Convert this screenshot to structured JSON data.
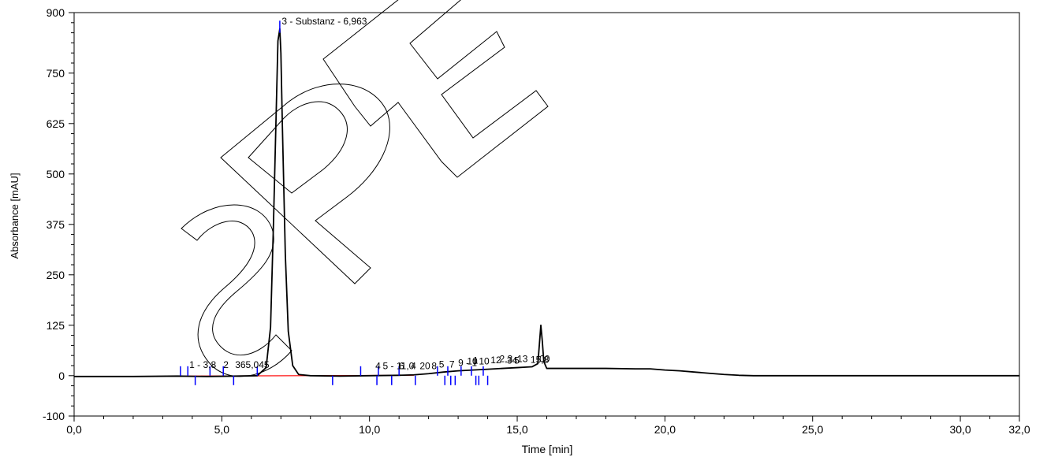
{
  "chart_data": {
    "type": "line",
    "xlabel": "Time [min]",
    "ylabel": "Absorbance [mAU]",
    "xlim": [
      0,
      32
    ],
    "ylim": [
      -100,
      900
    ],
    "x_ticks": [
      0,
      5,
      10,
      15,
      20,
      25,
      30,
      32
    ],
    "x_tick_labels": [
      "0,0",
      "5,0",
      "10,0",
      "15,0",
      "20,0",
      "25,0",
      "30,0",
      "32,0"
    ],
    "y_ticks": [
      -100,
      0,
      125,
      250,
      375,
      500,
      625,
      750,
      900
    ],
    "y_tick_labels": [
      "-100",
      "0",
      "125",
      "250",
      "375",
      "500",
      "625",
      "750",
      "900"
    ],
    "grid": false,
    "watermark": "SPE",
    "series": [
      {
        "color": "#000000",
        "x": [
          0,
          2,
          3.5,
          4.5,
          5.5,
          6.2,
          6.5,
          6.65,
          6.75,
          6.85,
          6.9,
          6.963,
          7.0,
          7.05,
          7.15,
          7.25,
          7.4,
          7.6,
          8,
          9,
          10,
          11,
          11.5,
          12,
          12.5,
          13,
          13.5,
          14,
          14.5,
          15,
          15.5,
          15.7,
          15.8,
          15.85,
          15.9,
          16,
          17,
          18,
          19,
          19.5,
          20,
          20.5,
          21,
          21.5,
          22,
          22.5,
          23,
          24,
          26,
          28,
          30,
          32
        ],
        "y": [
          -2,
          -2,
          -1,
          -2,
          -1,
          0,
          20,
          120,
          380,
          680,
          830,
          860,
          800,
          620,
          300,
          110,
          25,
          3,
          0,
          -1,
          0,
          1,
          2,
          5,
          9,
          12,
          14,
          16,
          18,
          20,
          22,
          30,
          125,
          85,
          35,
          18,
          18,
          18,
          17,
          17,
          14,
          12,
          9,
          6,
          3,
          1,
          0,
          0,
          0,
          0,
          0,
          0
        ]
      }
    ],
    "baseline": {
      "color": "#ff0000",
      "x": [
        3.6,
        7.6,
        11.5
      ],
      "y": [
        -1,
        0,
        1
      ]
    },
    "peak_markers": [
      {
        "x": 3.6,
        "dir": "up"
      },
      {
        "x": 3.85,
        "dir": "up"
      },
      {
        "x": 4.1,
        "dir": "down"
      },
      {
        "x": 4.6,
        "dir": "up"
      },
      {
        "x": 5.05,
        "dir": "up"
      },
      {
        "x": 5.4,
        "dir": "down"
      },
      {
        "x": 6.2,
        "dir": "up"
      },
      {
        "x": 6.963,
        "dir": "up"
      },
      {
        "x": 8.75,
        "dir": "down"
      },
      {
        "x": 9.7,
        "dir": "up"
      },
      {
        "x": 10.25,
        "dir": "down"
      },
      {
        "x": 10.3,
        "dir": "up"
      },
      {
        "x": 10.75,
        "dir": "down"
      },
      {
        "x": 11.0,
        "dir": "up"
      },
      {
        "x": 11.55,
        "dir": "down"
      },
      {
        "x": 12.3,
        "dir": "up"
      },
      {
        "x": 12.55,
        "dir": "down"
      },
      {
        "x": 12.65,
        "dir": "up"
      },
      {
        "x": 12.75,
        "dir": "down"
      },
      {
        "x": 12.9,
        "dir": "down"
      },
      {
        "x": 13.1,
        "dir": "up"
      },
      {
        "x": 13.45,
        "dir": "up"
      },
      {
        "x": 13.6,
        "dir": "down"
      },
      {
        "x": 13.7,
        "dir": "down"
      },
      {
        "x": 13.85,
        "dir": "up"
      },
      {
        "x": 14.0,
        "dir": "down"
      }
    ],
    "peak_labels": [
      {
        "x": 3.9,
        "y": 13,
        "text": "1 - 3,8"
      },
      {
        "x": 5.05,
        "y": 13,
        "text": "2"
      },
      {
        "x": 5.45,
        "y": 13,
        "text": "365,045"
      },
      {
        "x": 7.03,
        "y": 865,
        "text": "3 - Substanz - 6,963"
      },
      {
        "x": 10.2,
        "y": 10,
        "text": "4"
      },
      {
        "x": 10.45,
        "y": 10,
        "text": "5 - 11,0"
      },
      {
        "x": 11.0,
        "y": 10,
        "text": "6"
      },
      {
        "x": 11.4,
        "y": 10,
        "text": "4"
      },
      {
        "x": 11.7,
        "y": 10,
        "text": "20"
      },
      {
        "x": 12.1,
        "y": 10,
        "text": "8"
      },
      {
        "x": 12.35,
        "y": 14,
        "text": "5"
      },
      {
        "x": 12.7,
        "y": 14,
        "text": "7"
      },
      {
        "x": 13.0,
        "y": 18,
        "text": "9 - 1"
      },
      {
        "x": 13.3,
        "y": 22,
        "text": "10"
      },
      {
        "x": 13.5,
        "y": 24,
        "text": "1"
      },
      {
        "x": 13.7,
        "y": 22,
        "text": "10"
      },
      {
        "x": 14.1,
        "y": 25,
        "text": "12"
      },
      {
        "x": 14.4,
        "y": 28,
        "text": "2,3"
      },
      {
        "x": 14.65,
        "y": 24,
        "text": "34"
      },
      {
        "x": 14.9,
        "y": 24,
        "text": "5"
      },
      {
        "x": 15.0,
        "y": 28,
        "text": "13"
      },
      {
        "x": 15.45,
        "y": 26,
        "text": "15,8"
      },
      {
        "x": 15.75,
        "y": 28,
        "text": "00"
      }
    ]
  }
}
